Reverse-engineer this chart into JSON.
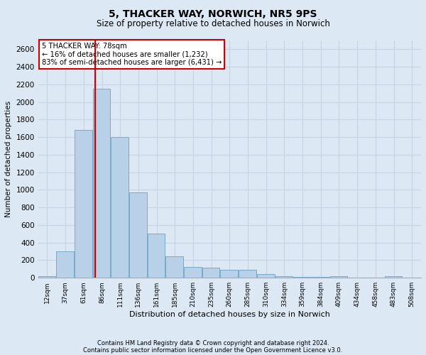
{
  "title": "5, THACKER WAY, NORWICH, NR5 9PS",
  "subtitle": "Size of property relative to detached houses in Norwich",
  "xlabel": "Distribution of detached houses by size in Norwich",
  "ylabel": "Number of detached properties",
  "property_size": 78,
  "annotation_line1": "5 THACKER WAY: 78sqm",
  "annotation_line2": "← 16% of detached houses are smaller (1,232)",
  "annotation_line3": "83% of semi-detached houses are larger (6,431) →",
  "footnote1": "Contains HM Land Registry data © Crown copyright and database right 2024.",
  "footnote2": "Contains public sector information licensed under the Open Government Licence v3.0.",
  "bar_color": "#b8d0e8",
  "bar_edge_color": "#7aaac8",
  "grid_color": "#c8d4e4",
  "vline_color": "#cc0000",
  "annotation_box_edge": "#cc0000",
  "background_color": "#dce8f4",
  "bin_labels": [
    "12sqm",
    "37sqm",
    "61sqm",
    "86sqm",
    "111sqm",
    "136sqm",
    "161sqm",
    "185sqm",
    "210sqm",
    "235sqm",
    "260sqm",
    "285sqm",
    "310sqm",
    "334sqm",
    "359sqm",
    "384sqm",
    "409sqm",
    "434sqm",
    "458sqm",
    "483sqm",
    "508sqm"
  ],
  "bin_edges": [
    0,
    25,
    50,
    75,
    100,
    125,
    150,
    175,
    200,
    225,
    250,
    275,
    300,
    325,
    350,
    375,
    400,
    425,
    450,
    475,
    500,
    525
  ],
  "counts": [
    20,
    300,
    1680,
    2150,
    1600,
    975,
    505,
    248,
    120,
    115,
    95,
    90,
    40,
    20,
    10,
    10,
    18,
    5,
    5,
    20,
    5
  ],
  "ylim": [
    0,
    2700
  ],
  "yticks": [
    0,
    200,
    400,
    600,
    800,
    1000,
    1200,
    1400,
    1600,
    1800,
    2000,
    2200,
    2400,
    2600
  ]
}
